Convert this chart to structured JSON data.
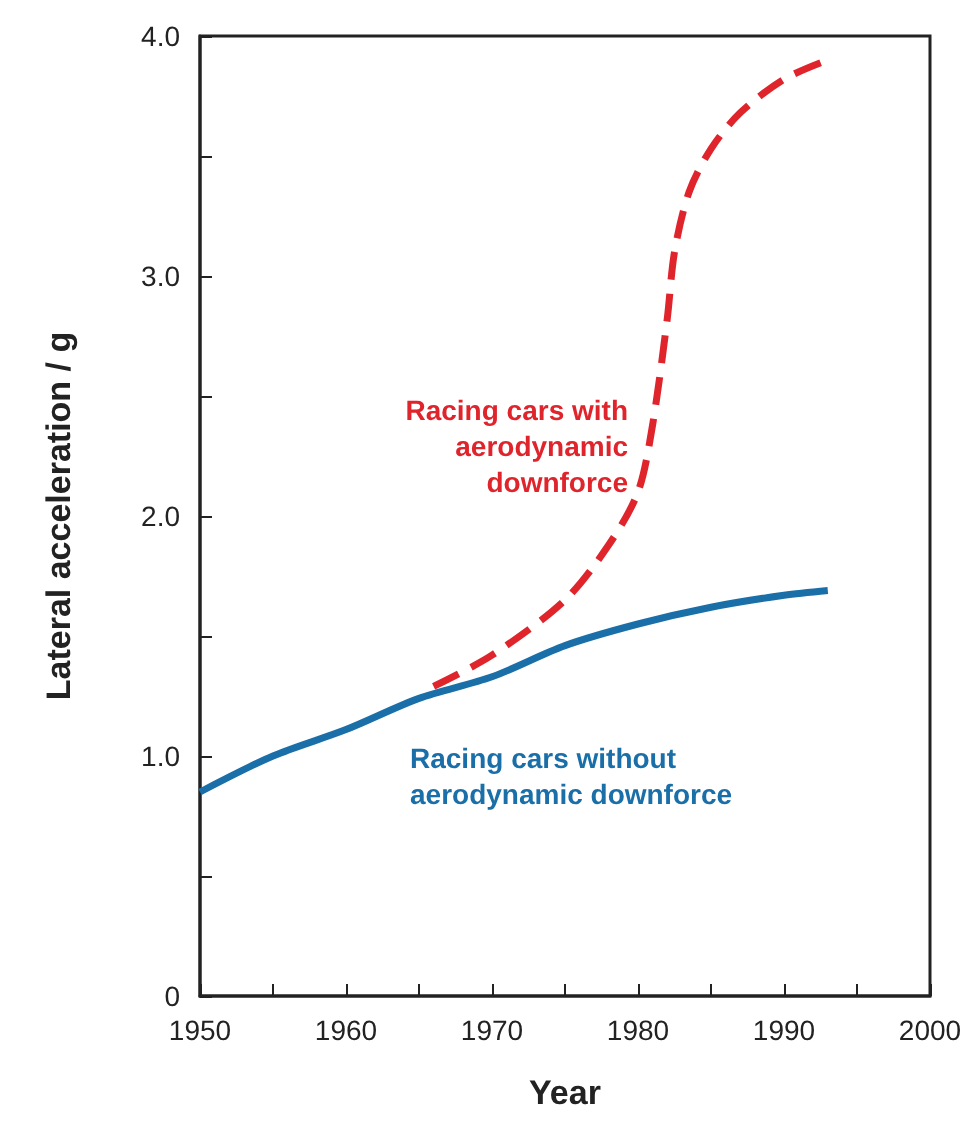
{
  "chart_data": {
    "type": "line",
    "xlabel": "Year",
    "ylabel": "Lateral acceleration / g",
    "xlim": [
      1950,
      2000
    ],
    "ylim": [
      0,
      4
    ],
    "xticks": [
      1950,
      {
        "value": 1955,
        "label": null
      },
      1960,
      {
        "value": 1965,
        "label": null
      },
      1970,
      {
        "value": 1975,
        "label": null
      },
      1980,
      {
        "value": 1985,
        "label": null
      },
      1990,
      {
        "value": 1995,
        "label": null
      },
      2000
    ],
    "yticks": [
      0,
      {
        "value": 0.5,
        "label": null
      },
      {
        "value": 1,
        "label": "1.0"
      },
      {
        "value": 1.5,
        "label": null
      },
      {
        "value": 2,
        "label": "2.0"
      },
      {
        "value": 2.5,
        "label": null
      },
      {
        "value": 3,
        "label": "3.0"
      },
      {
        "value": 3.5,
        "label": null
      },
      {
        "value": 4,
        "label": "4.0"
      }
    ],
    "grid": false,
    "marker": "none",
    "series": [
      {
        "color": "#1a6fa8",
        "line_style": "solid",
        "x": [
          1950,
          1955,
          1960,
          1965,
          1970,
          1975,
          1980,
          1985,
          1990,
          1993
        ],
        "values": [
          0.85,
          1.0,
          1.11,
          1.24,
          1.33,
          1.46,
          1.55,
          1.62,
          1.67,
          1.69
        ]
      },
      {
        "color": "#e0242c",
        "line_style": "dashed",
        "x": [
          1966,
          1970,
          1975,
          1978,
          1980,
          1981,
          1982,
          1982.5,
          1983.5,
          1985,
          1987,
          1990,
          1993
        ],
        "values": [
          1.29,
          1.42,
          1.65,
          1.88,
          2.1,
          2.38,
          2.82,
          3.1,
          3.35,
          3.53,
          3.68,
          3.82,
          3.9
        ]
      }
    ],
    "annotations": [
      "Racing cars with\naerodynamic\ndownforce",
      "Racing cars without\naerodynamic downforce"
    ]
  }
}
